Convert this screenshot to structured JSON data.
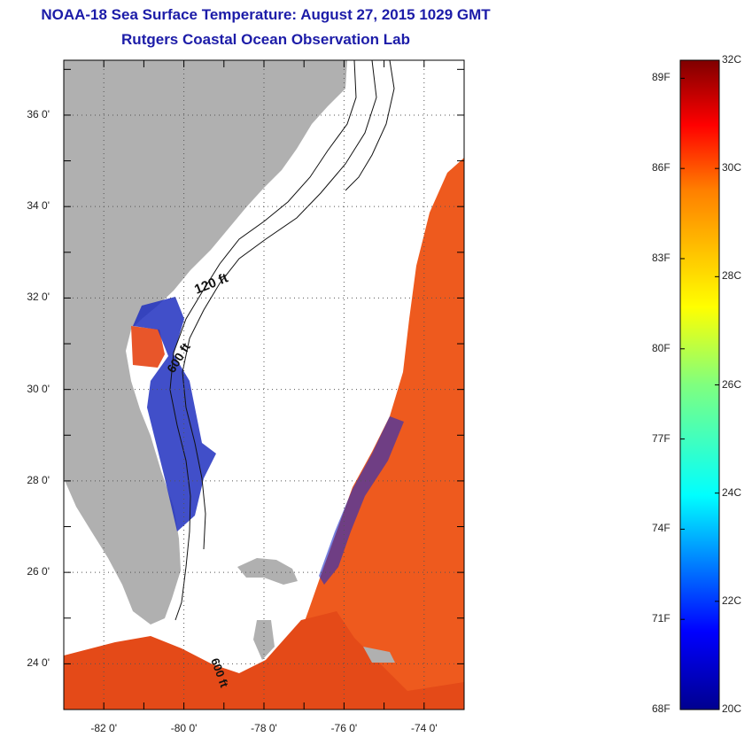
{
  "header": {
    "title": "NOAA-18 Sea Surface Temperature:  August 27, 2015 1029 GMT",
    "subtitle": "Rutgers Coastal Ocean Observation Lab"
  },
  "map": {
    "lat_range": [
      23,
      37.2
    ],
    "lon_range": [
      -83,
      -73
    ],
    "lat_labels": [
      "36 0'",
      "34 0'",
      "32 0'",
      "30 0'",
      "28 0'",
      "26 0'",
      "24 0'"
    ],
    "lon_labels": [
      "-82 0'",
      "-80 0'",
      "-78 0'",
      "-76 0'",
      "-74 0'"
    ],
    "contour_labels": [
      "120 ft",
      "600 ft",
      "600 ft"
    ],
    "colors": {
      "land": "#b0b0b0",
      "no_data": "#ffffff",
      "warm_water": "#ee5a1e"
    }
  },
  "colorbar": {
    "min_c": 20,
    "max_c": 32,
    "celsius_labels": [
      "32C",
      "30C",
      "28C",
      "26C",
      "24C",
      "22C",
      "20C"
    ],
    "fahrenheit_labels": [
      "89F",
      "86F",
      "83F",
      "80F",
      "77F",
      "74F",
      "71F",
      "68F"
    ]
  }
}
